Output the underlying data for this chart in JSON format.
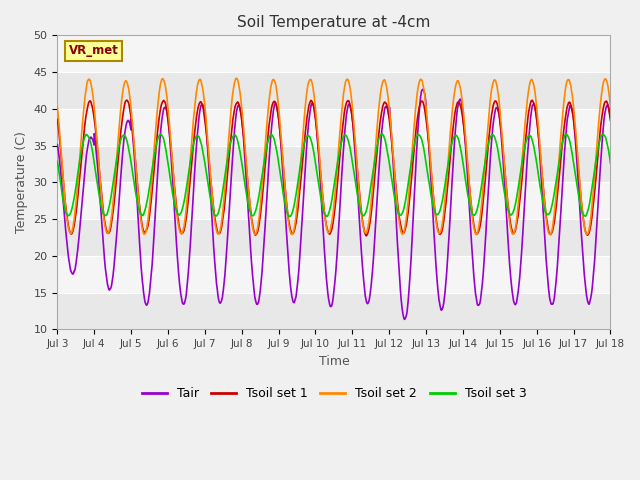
{
  "title": "Soil Temperature at -4cm",
  "xlabel": "Time",
  "ylabel": "Temperature (C)",
  "ylim": [
    10,
    50
  ],
  "site_label": "VR_met",
  "line_colors": {
    "Tair": "#9900cc",
    "Tsoil set 1": "#cc0000",
    "Tsoil set 2": "#ff8800",
    "Tsoil set 3": "#00cc00"
  },
  "line_widths": {
    "Tair": 1.2,
    "Tsoil set 1": 1.2,
    "Tsoil set 2": 1.2,
    "Tsoil set 3": 1.2
  },
  "xtick_labels": [
    "Jul 3",
    "Jul 4",
    "Jul 5",
    "Jul 6",
    "Jul 7",
    "Jul 8",
    "Jul 9",
    "Jul 10",
    "Jul 11",
    "Jul 12",
    "Jul 13",
    "Jul 14",
    "Jul 15",
    "Jul 16",
    "Jul 17",
    "Jul 18"
  ],
  "ytick_values": [
    10,
    15,
    20,
    25,
    30,
    35,
    40,
    45,
    50
  ],
  "n_days": 15,
  "points_per_day": 144,
  "band_colors": [
    "#e8e8e8",
    "#f5f5f5"
  ],
  "fig_bg": "#f0f0f0"
}
